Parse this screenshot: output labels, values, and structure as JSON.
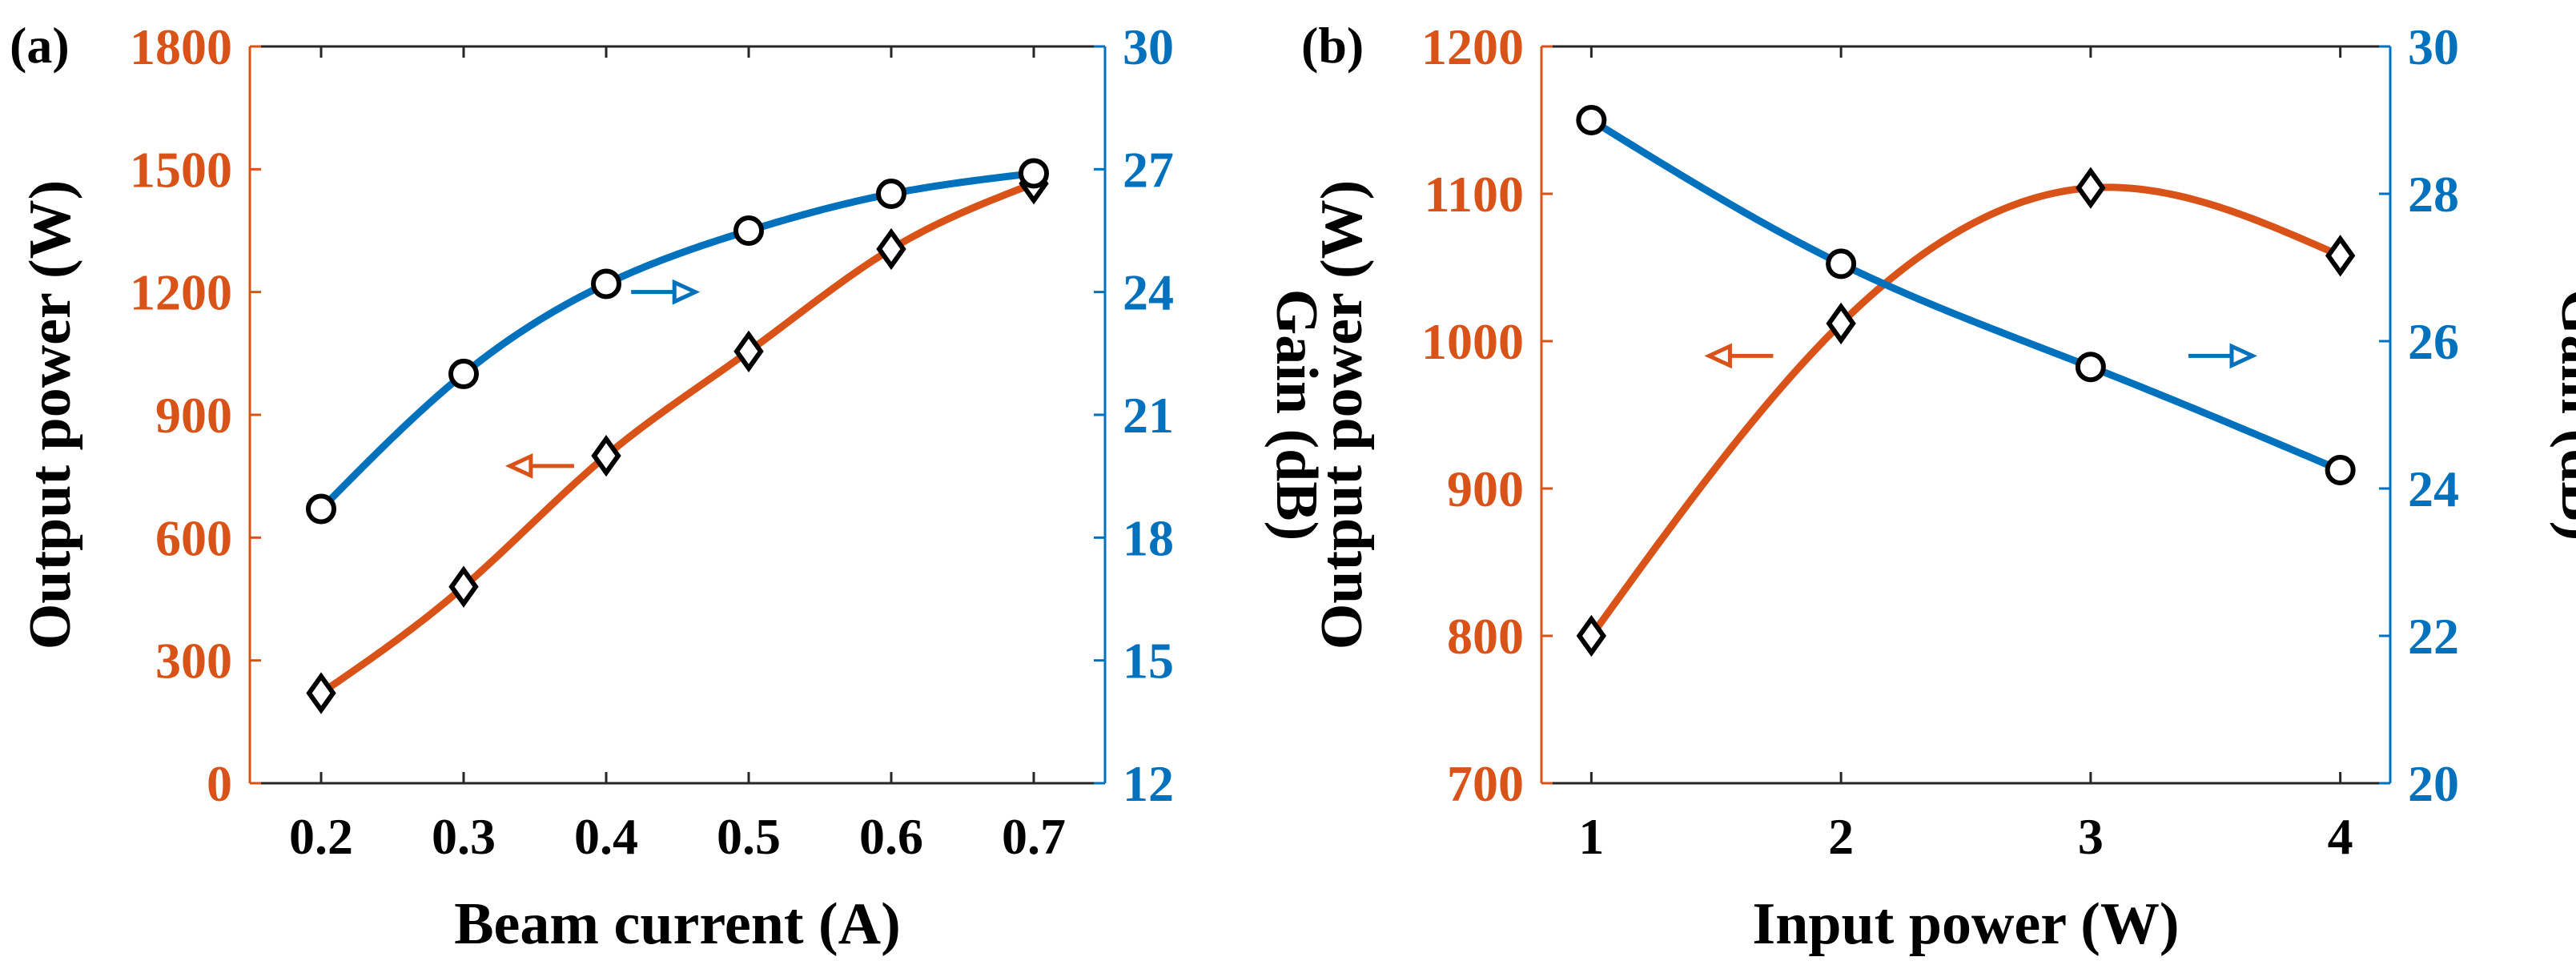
{
  "colors": {
    "power": "#D95319",
    "gain": "#0072BD",
    "marker_edge": "#000000",
    "axis": "#262626",
    "text": "#000000"
  },
  "chart_data": [
    {
      "id": "a",
      "panel_label": "(a)",
      "type": "line",
      "xlabel": "Beam current (A)",
      "ylabel_left": "Output power (W)",
      "ylabel_right": "Gain (dB)",
      "x": [
        0.2,
        0.3,
        0.4,
        0.5,
        0.6,
        0.7
      ],
      "xlim": [
        0.15,
        0.75
      ],
      "xticks": [
        0.2,
        0.3,
        0.4,
        0.5,
        0.6,
        0.7
      ],
      "xtick_labels": [
        "0.2",
        "0.3",
        "0.4",
        "0.5",
        "0.6",
        "0.7"
      ],
      "ylim_left": [
        0,
        1800
      ],
      "yticks_left": [
        0,
        300,
        600,
        900,
        1200,
        1500,
        1800
      ],
      "ytick_labels_left": [
        "0",
        "300",
        "600",
        "900",
        "1200",
        "1500",
        "1800"
      ],
      "ylim_right": [
        12,
        30
      ],
      "yticks_right": [
        12,
        15,
        18,
        21,
        24,
        27,
        30
      ],
      "ytick_labels_right": [
        "12",
        "15",
        "18",
        "21",
        "24",
        "27",
        "30"
      ],
      "series": [
        {
          "name": "Output power",
          "axis": "left",
          "marker": "diamond",
          "color": "#D95319",
          "values": [
            220,
            480,
            800,
            1055,
            1305,
            1465
          ]
        },
        {
          "name": "Gain",
          "axis": "right",
          "marker": "circle",
          "color": "#0072BD",
          "values": [
            18.7,
            22.0,
            24.2,
            25.5,
            26.4,
            26.9
          ]
        }
      ],
      "annotations": [
        {
          "target": "Output power",
          "direction": "left",
          "x": 0.355,
          "y": 775,
          "axis": "left"
        },
        {
          "target": "Gain",
          "direction": "right",
          "x": 0.44,
          "y": 24.0,
          "axis": "right"
        }
      ]
    },
    {
      "id": "b",
      "panel_label": "(b)",
      "type": "line",
      "xlabel": "Input power (W)",
      "ylabel_left": "Output power (W)",
      "ylabel_right": "Gain (dB)",
      "x": [
        1,
        2,
        3,
        4
      ],
      "xlim": [
        0.8,
        4.2
      ],
      "xticks": [
        1,
        2,
        3,
        4
      ],
      "xtick_labels": [
        "1",
        "2",
        "3",
        "4"
      ],
      "ylim_left": [
        700,
        1200
      ],
      "yticks_left": [
        700,
        800,
        900,
        1000,
        1100,
        1200
      ],
      "ytick_labels_left": [
        "700",
        "800",
        "900",
        "1000",
        "1100",
        "1200"
      ],
      "ylim_right": [
        20,
        30
      ],
      "yticks_right": [
        20,
        22,
        24,
        26,
        28,
        30
      ],
      "ytick_labels_right": [
        "20",
        "22",
        "24",
        "26",
        "28",
        "30"
      ],
      "series": [
        {
          "name": "Output power",
          "axis": "left",
          "marker": "diamond",
          "color": "#D95319",
          "values": [
            800,
            1012,
            1104,
            1058
          ]
        },
        {
          "name": "Gain",
          "axis": "right",
          "marker": "circle",
          "color": "#0072BD",
          "values": [
            29.0,
            27.05,
            25.65,
            24.25
          ]
        }
      ],
      "annotations": [
        {
          "target": "Output power",
          "direction": "left",
          "x": 1.6,
          "y": 990,
          "axis": "left"
        },
        {
          "target": "Gain",
          "direction": "right",
          "x": 3.52,
          "y": 25.8,
          "axis": "right"
        }
      ]
    }
  ]
}
